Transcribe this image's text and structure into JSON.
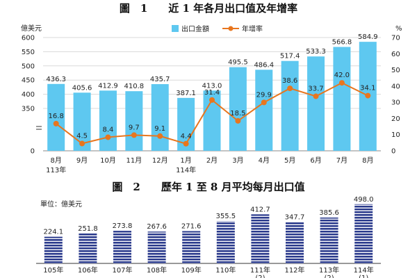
{
  "chart_data": [
    {
      "type": "bar+line",
      "title": "圖　1　　近 1 年各月出口值及年增率",
      "ylabel_left": "億美元",
      "ylabel_right": "%",
      "left_ticks": [
        "600",
        "550",
        "500",
        "450",
        "400",
        "350",
        "0"
      ],
      "right_ticks": [
        "70",
        "60",
        "50",
        "40",
        "30",
        "20",
        "10",
        "0"
      ],
      "left_ylim": [
        350,
        600
      ],
      "right_ylim": [
        0,
        70
      ],
      "axis_break": true,
      "legend": {
        "placement": "top",
        "bar_name": "出口金額",
        "line_name": "年增率"
      },
      "categories": [
        {
          "l1": "8月",
          "l2": "113年"
        },
        {
          "l1": "9月",
          "l2": ""
        },
        {
          "l1": "10月",
          "l2": ""
        },
        {
          "l1": "11月",
          "l2": ""
        },
        {
          "l1": "12月",
          "l2": ""
        },
        {
          "l1": "1月",
          "l2": "114年"
        },
        {
          "l1": "2月",
          "l2": ""
        },
        {
          "l1": "3月",
          "l2": ""
        },
        {
          "l1": "4月",
          "l2": ""
        },
        {
          "l1": "5月",
          "l2": ""
        },
        {
          "l1": "6月",
          "l2": ""
        },
        {
          "l1": "7月",
          "l2": ""
        },
        {
          "l1": "8月",
          "l2": ""
        }
      ],
      "bar_values": [
        436.3,
        405.6,
        412.9,
        410.8,
        435.7,
        387.1,
        413.0,
        495.5,
        486.4,
        517.4,
        533.3,
        566.8,
        584.9
      ],
      "bar_labels": [
        "436.3",
        "405.6",
        "412.9",
        "410.8",
        "435.7",
        "387.1",
        "413.0",
        "495.5",
        "486.4",
        "517.4",
        "533.3",
        "566.8",
        "584.9"
      ],
      "line_values": [
        16.8,
        4.5,
        8.4,
        9.7,
        9.1,
        4.4,
        31.4,
        18.5,
        29.9,
        38.6,
        33.7,
        42.0,
        34.1
      ],
      "line_labels": [
        "16.8",
        "4.5",
        "8.4",
        "9.7",
        "9.1",
        "4.4",
        "31.4",
        "18.5",
        "29.9",
        "38.6",
        "33.7",
        "42.0",
        "34.1"
      ],
      "colors": {
        "bar": "#5ec8f0",
        "line": "#e8761e",
        "grid": "#d9d9d9"
      }
    },
    {
      "type": "bar",
      "title": "圖　2　　歷年 1 至 8 月平均每月出口值",
      "unit_label": "單位：億美元",
      "categories": [
        {
          "l1": "105年",
          "l2": ""
        },
        {
          "l1": "106年",
          "l2": ""
        },
        {
          "l1": "107年",
          "l2": ""
        },
        {
          "l1": "108年",
          "l2": ""
        },
        {
          "l1": "109年",
          "l2": ""
        },
        {
          "l1": "110年",
          "l2": ""
        },
        {
          "l1": "111年",
          "l2": "(2)"
        },
        {
          "l1": "112年",
          "l2": ""
        },
        {
          "l1": "113年",
          "l2": "(2)"
        },
        {
          "l1": "114年",
          "l2": "(1)"
        }
      ],
      "values": [
        224.1,
        251.8,
        273.8,
        267.6,
        271.6,
        355.5,
        412.7,
        347.7,
        385.6,
        498.0
      ],
      "labels": [
        "224.1",
        "251.8",
        "273.8",
        "267.6",
        "271.6",
        "355.5",
        "412.7",
        "347.7",
        "385.6",
        "498.0"
      ],
      "ylim": [
        0,
        520
      ],
      "colors": {
        "bar": "#2a3a8c",
        "stripe": "#ffffff"
      }
    }
  ]
}
